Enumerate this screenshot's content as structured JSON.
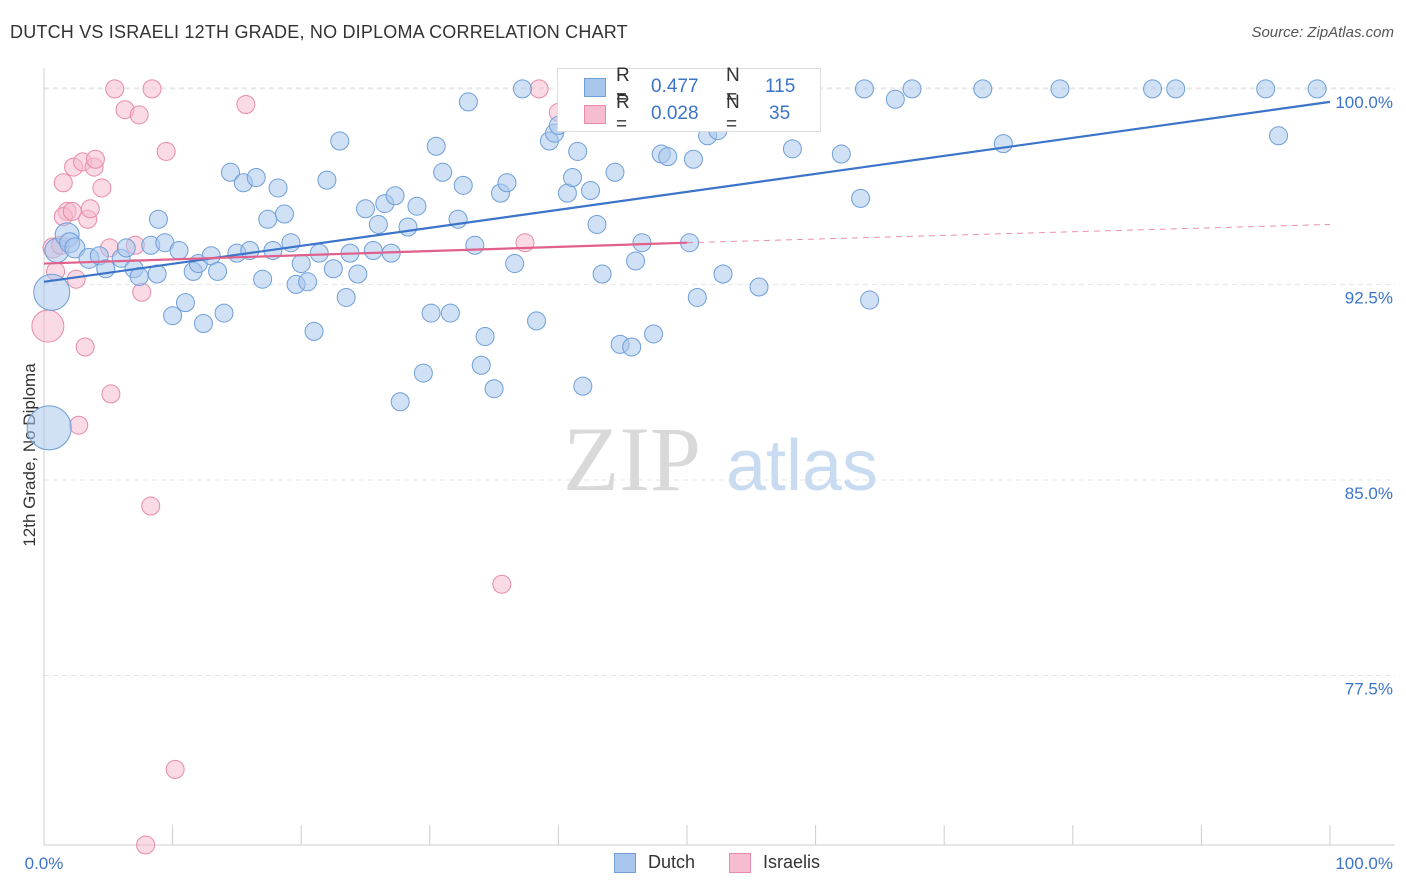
{
  "title": "DUTCH VS ISRAELI 12TH GRADE, NO DIPLOMA CORRELATION CHART",
  "source": "Source: ZipAtlas.com",
  "watermark": {
    "zip": "ZIP",
    "atlas": "atlas"
  },
  "stats": {
    "dutch": {
      "r_label": "R =",
      "r": "0.477",
      "n_label": "N =",
      "n": "115"
    },
    "israelis": {
      "r_label": "R =",
      "r": "0.028",
      "n_label": "N =",
      "n": "35"
    }
  },
  "legend": {
    "dutch": "Dutch",
    "israelis": "Israelis"
  },
  "colors": {
    "dutch_fill": "#a9c7ec",
    "dutch_stroke": "#6e9fd9",
    "dutch_line": "#3b74c8",
    "israelis_fill": "#f6bccf",
    "israelis_stroke": "#e88aaa",
    "israelis_line": "#e0608b",
    "axis_text": "#3b74c8",
    "grid": "#e5e5e5"
  },
  "chart_data": {
    "type": "scatter",
    "title": "DUTCH VS ISRAELI 12TH GRADE, NO DIPLOMA CORRELATION CHART",
    "xlabel": "",
    "ylabel": "12th Grade, No Diploma",
    "xlim": [
      0,
      100
    ],
    "ylim": [
      71.0,
      100.8
    ],
    "x_tick_labels": [
      "0.0%",
      "100.0%"
    ],
    "y_ticks": [
      100.0,
      92.5,
      85.0,
      77.5
    ],
    "y_tick_labels": [
      "100.0%",
      "92.5%",
      "85.0%",
      "77.5%"
    ],
    "legend_position": "bottom-center",
    "series": [
      {
        "name": "Dutch",
        "points": [
          [
            0.4,
            87.0,
            22
          ],
          [
            0.6,
            92.2,
            18
          ],
          [
            1.0,
            93.8,
            12
          ],
          [
            1.8,
            94.4,
            12
          ],
          [
            2.0,
            94.1,
            10
          ],
          [
            2.4,
            93.9,
            10
          ],
          [
            3.5,
            93.5,
            10
          ],
          [
            4.3,
            93.6,
            9
          ],
          [
            4.8,
            93.1,
            9
          ],
          [
            6.0,
            93.5,
            9
          ],
          [
            6.4,
            93.9,
            9
          ],
          [
            7.0,
            93.1,
            9
          ],
          [
            7.4,
            92.8,
            9
          ],
          [
            8.3,
            94.0,
            9
          ],
          [
            8.8,
            92.9,
            9
          ],
          [
            8.9,
            95.0,
            9
          ],
          [
            9.4,
            94.1,
            9
          ],
          [
            10.0,
            91.3,
            9
          ],
          [
            10.5,
            93.8,
            9
          ],
          [
            11.0,
            91.8,
            9
          ],
          [
            11.6,
            93.0,
            9
          ],
          [
            12.0,
            93.3,
            9
          ],
          [
            12.4,
            91.0,
            9
          ],
          [
            13.0,
            93.6,
            9
          ],
          [
            13.5,
            93.0,
            9
          ],
          [
            14.0,
            91.4,
            9
          ],
          [
            14.5,
            96.8,
            9
          ],
          [
            15.0,
            93.7,
            9
          ],
          [
            15.5,
            96.4,
            9
          ],
          [
            16.0,
            93.8,
            9
          ],
          [
            16.5,
            96.6,
            9
          ],
          [
            17.0,
            92.7,
            9
          ],
          [
            17.4,
            95.0,
            9
          ],
          [
            17.8,
            93.8,
            9
          ],
          [
            18.2,
            96.2,
            9
          ],
          [
            18.7,
            95.2,
            9
          ],
          [
            19.2,
            94.1,
            9
          ],
          [
            19.6,
            92.5,
            9
          ],
          [
            20.0,
            93.3,
            9
          ],
          [
            20.5,
            92.6,
            9
          ],
          [
            21.0,
            90.7,
            9
          ],
          [
            21.4,
            93.7,
            9
          ],
          [
            22.0,
            96.5,
            9
          ],
          [
            22.5,
            93.1,
            9
          ],
          [
            23.0,
            98.0,
            9
          ],
          [
            23.5,
            92.0,
            9
          ],
          [
            23.8,
            93.7,
            9
          ],
          [
            24.4,
            92.9,
            9
          ],
          [
            25.0,
            95.4,
            9
          ],
          [
            25.6,
            93.8,
            9
          ],
          [
            26.0,
            94.8,
            9
          ],
          [
            26.5,
            95.6,
            9
          ],
          [
            27.0,
            93.7,
            9
          ],
          [
            27.3,
            95.9,
            9
          ],
          [
            27.7,
            88.0,
            9
          ],
          [
            28.3,
            94.7,
            9
          ],
          [
            29.0,
            95.5,
            9
          ],
          [
            29.5,
            89.1,
            9
          ],
          [
            30.1,
            91.4,
            9
          ],
          [
            30.5,
            97.8,
            9
          ],
          [
            31.0,
            96.8,
            9
          ],
          [
            31.6,
            91.4,
            9
          ],
          [
            32.2,
            95.0,
            9
          ],
          [
            32.6,
            96.3,
            9
          ],
          [
            33.0,
            99.5,
            9
          ],
          [
            33.5,
            94.0,
            9
          ],
          [
            34.0,
            89.4,
            9
          ],
          [
            34.3,
            90.5,
            9
          ],
          [
            35.0,
            88.5,
            9
          ],
          [
            35.5,
            96.0,
            9
          ],
          [
            36.0,
            96.4,
            9
          ],
          [
            36.6,
            93.3,
            9
          ],
          [
            37.2,
            100.0,
            9
          ],
          [
            38.3,
            91.1,
            9
          ],
          [
            39.3,
            98.0,
            9
          ],
          [
            39.7,
            98.3,
            9
          ],
          [
            40.0,
            98.6,
            9
          ],
          [
            40.7,
            96.0,
            9
          ],
          [
            41.1,
            96.6,
            9
          ],
          [
            41.5,
            97.6,
            9
          ],
          [
            41.9,
            88.6,
            9
          ],
          [
            42.5,
            96.1,
            9
          ],
          [
            43.0,
            94.8,
            9
          ],
          [
            43.4,
            92.9,
            9
          ],
          [
            44.4,
            96.8,
            9
          ],
          [
            44.8,
            90.2,
            9
          ],
          [
            45.7,
            90.1,
            9
          ],
          [
            46.0,
            93.4,
            9
          ],
          [
            46.5,
            94.1,
            9
          ],
          [
            47.4,
            90.6,
            9
          ],
          [
            48.0,
            97.5,
            9
          ],
          [
            48.5,
            97.4,
            9
          ],
          [
            50.2,
            94.1,
            9
          ],
          [
            50.5,
            97.3,
            9
          ],
          [
            50.8,
            92.0,
            9
          ],
          [
            51.6,
            98.2,
            9
          ],
          [
            52.4,
            98.4,
            9
          ],
          [
            52.8,
            92.9,
            9
          ],
          [
            54.0,
            100.0,
            9
          ],
          [
            55.6,
            92.4,
            9
          ],
          [
            58.2,
            97.7,
            9
          ],
          [
            59.6,
            100.0,
            9
          ],
          [
            62.0,
            97.5,
            9
          ],
          [
            63.8,
            100.0,
            9
          ],
          [
            63.5,
            95.8,
            9
          ],
          [
            64.2,
            91.9,
            9
          ],
          [
            66.2,
            99.6,
            9
          ],
          [
            67.5,
            100.0,
            9
          ],
          [
            73.0,
            100.0,
            9
          ],
          [
            74.6,
            97.9,
            9
          ],
          [
            79.0,
            100.0,
            9
          ],
          [
            86.2,
            100.0,
            9
          ],
          [
            88.0,
            100.0,
            9
          ],
          [
            95.0,
            100.0,
            9
          ],
          [
            99.0,
            100.0,
            9
          ],
          [
            96.0,
            98.2,
            9
          ]
        ],
        "trend": {
          "x0": 0,
          "y0": 92.6,
          "x1": 100,
          "y1": 99.5
        }
      },
      {
        "name": "Israelis",
        "points": [
          [
            0.3,
            90.9,
            16
          ],
          [
            0.7,
            93.9,
            10
          ],
          [
            0.9,
            93.0,
            9
          ],
          [
            1.3,
            94.0,
            9
          ],
          [
            1.5,
            96.4,
            9
          ],
          [
            1.8,
            95.3,
            9
          ],
          [
            1.5,
            95.1,
            9
          ],
          [
            2.2,
            95.3,
            9
          ],
          [
            2.3,
            97.0,
            9
          ],
          [
            2.5,
            92.7,
            9
          ],
          [
            2.7,
            87.1,
            9
          ],
          [
            3.0,
            97.2,
            9
          ],
          [
            3.2,
            90.1,
            9
          ],
          [
            3.4,
            95.0,
            9
          ],
          [
            3.6,
            95.4,
            9
          ],
          [
            3.9,
            97.0,
            9
          ],
          [
            4.0,
            97.3,
            9
          ],
          [
            4.5,
            96.2,
            9
          ],
          [
            5.1,
            93.9,
            9
          ],
          [
            5.2,
            88.3,
            9
          ],
          [
            5.5,
            100.0,
            9
          ],
          [
            6.3,
            99.2,
            9
          ],
          [
            7.1,
            94.0,
            9
          ],
          [
            7.4,
            99.0,
            9
          ],
          [
            7.6,
            92.2,
            9
          ],
          [
            7.9,
            71.0,
            9
          ],
          [
            8.3,
            84.0,
            9
          ],
          [
            8.4,
            100.0,
            9
          ],
          [
            9.5,
            97.6,
            9
          ],
          [
            10.2,
            73.9,
            9
          ],
          [
            15.7,
            99.4,
            9
          ],
          [
            35.6,
            81.0,
            9
          ],
          [
            37.4,
            94.1,
            9
          ],
          [
            38.5,
            100.0,
            9
          ],
          [
            40.0,
            99.1,
            9
          ]
        ],
        "trend": {
          "x0": 0,
          "y0": 93.3,
          "x1": 50,
          "y1": 94.1
        },
        "trend_extension": {
          "x0": 50,
          "y0": 94.1,
          "x1": 100,
          "y1": 94.8
        }
      }
    ]
  }
}
